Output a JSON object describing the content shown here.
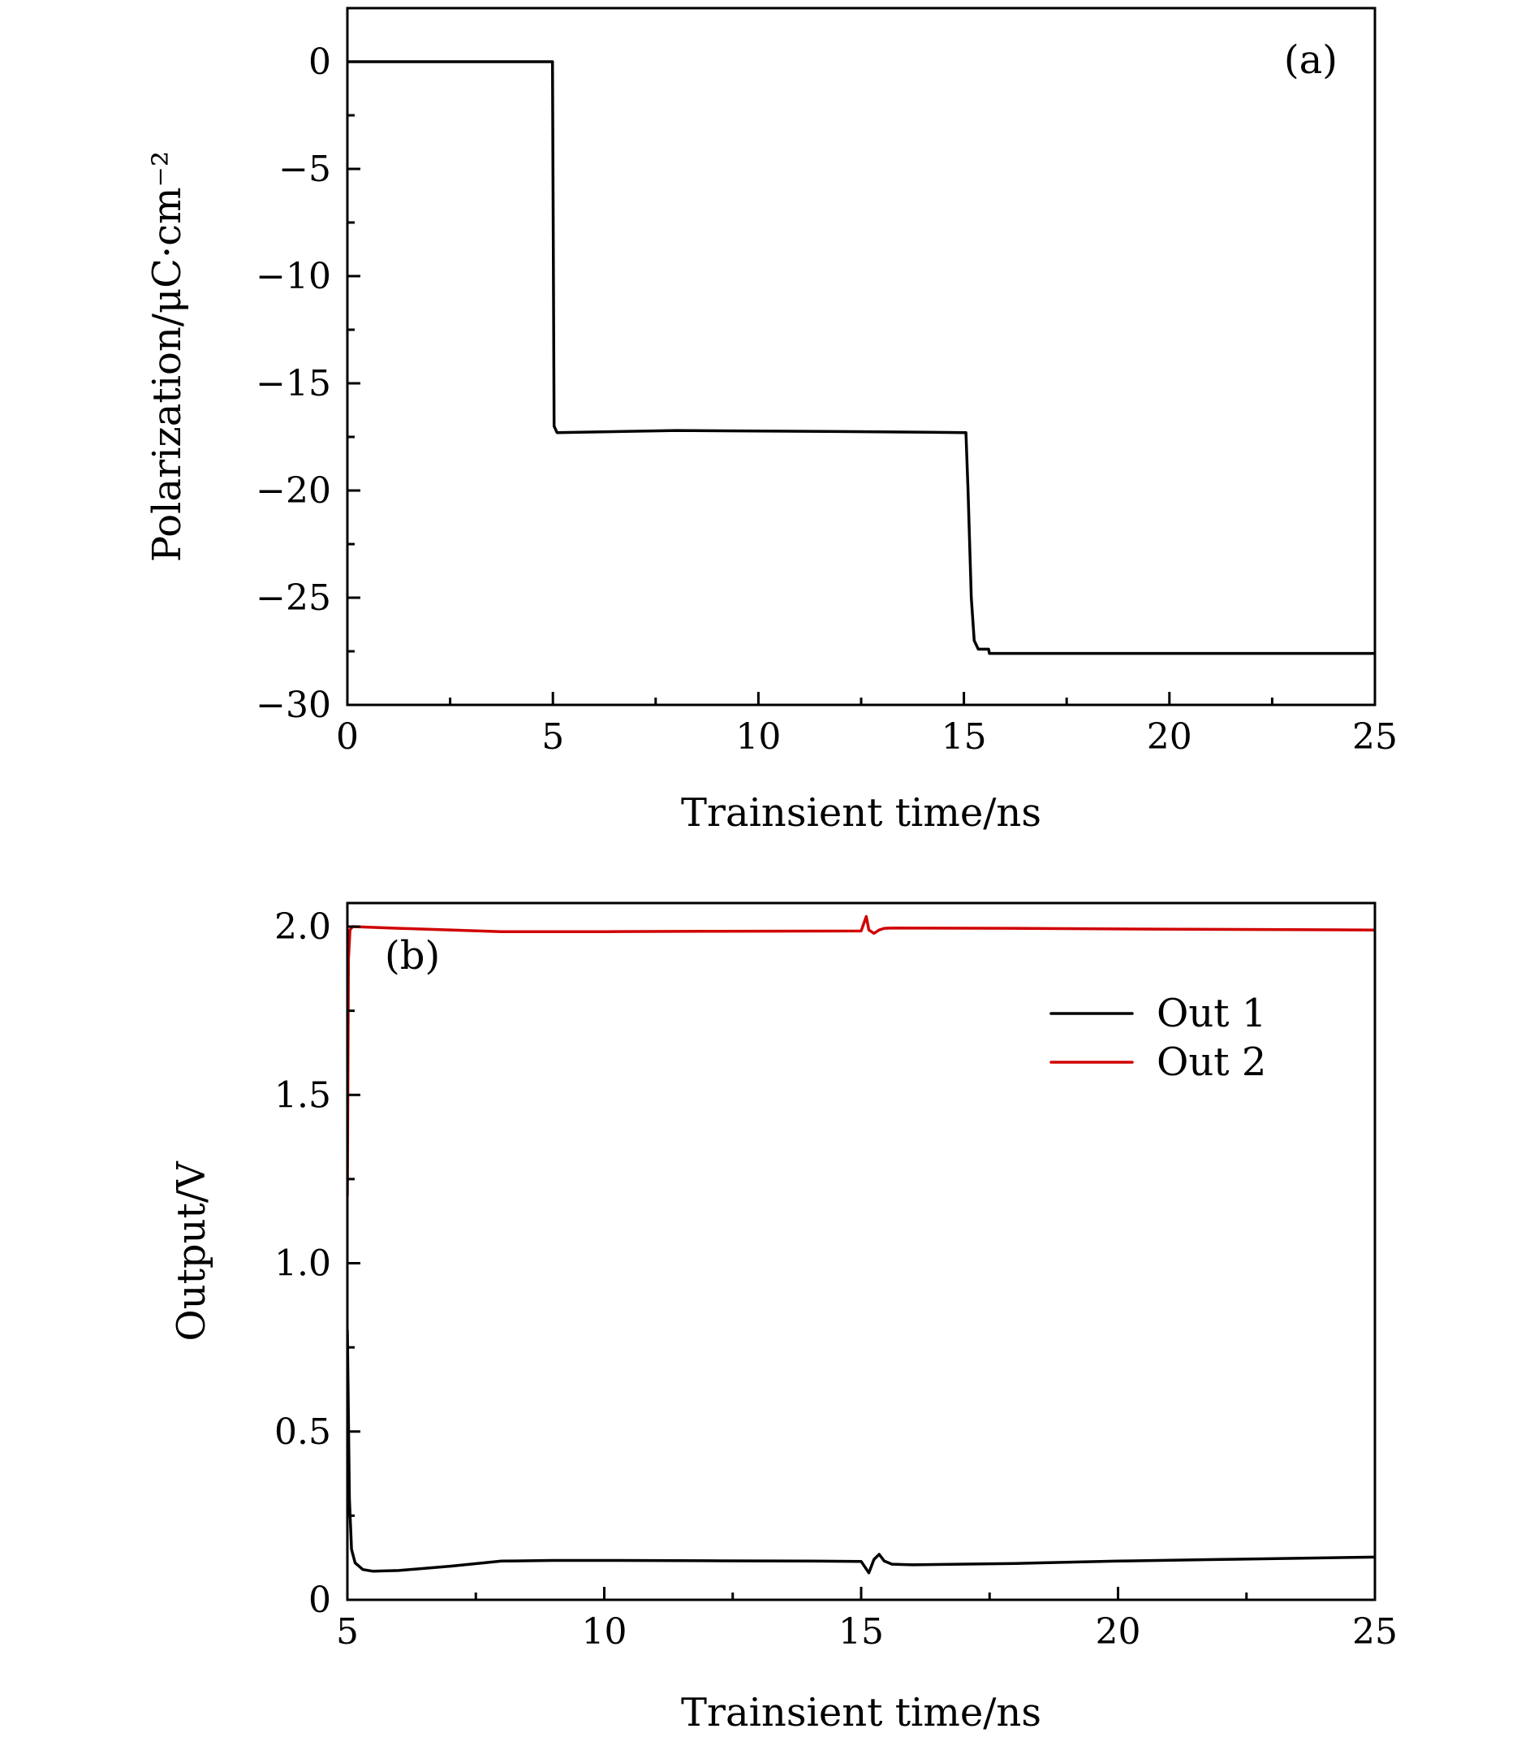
{
  "chart_data": [
    {
      "type": "line",
      "panel_label": "(a)",
      "title": "",
      "xlabel": "Trainsient time/ns",
      "ylabel": "Polarization/μC·cm⁻²",
      "xlim": [
        0,
        25
      ],
      "ylim": [
        -30,
        2.5
      ],
      "xticks": [
        0,
        5,
        10,
        15,
        20,
        25
      ],
      "xtick_labels": [
        "0",
        "5",
        "10",
        "15",
        "20",
        "25"
      ],
      "yticks": [
        0,
        -5,
        -10,
        -15,
        -20,
        -25,
        -30
      ],
      "ytick_labels": [
        "0",
        "−5",
        "−10",
        "−15",
        "−20",
        "−25",
        "−30"
      ],
      "grid": false,
      "legend": null,
      "series": [
        {
          "color": "#000000",
          "x": [
            0,
            4.99,
            5.03,
            5.1,
            8,
            12,
            15.05,
            15.1,
            15.18,
            15.25,
            15.35,
            15.6,
            15.62,
            25
          ],
          "y": [
            0,
            0,
            -17.0,
            -17.3,
            -17.2,
            -17.25,
            -17.3,
            -20,
            -25,
            -27,
            -27.4,
            -27.4,
            -27.6,
            -27.6
          ]
        }
      ]
    },
    {
      "type": "line",
      "panel_label": "(b)",
      "title": "",
      "xlabel": "Trainsient time/ns",
      "ylabel": "Output/V",
      "xlim": [
        5,
        25
      ],
      "ylim": [
        0,
        2.07
      ],
      "xticks": [
        5,
        10,
        15,
        20,
        25
      ],
      "xtick_labels": [
        "5",
        "10",
        "15",
        "20",
        "25"
      ],
      "yticks": [
        0,
        0.5,
        1.0,
        1.5,
        2.0
      ],
      "ytick_labels": [
        "0",
        "0.5",
        "1.0",
        "1.5",
        "2.0"
      ],
      "grid": false,
      "legend": {
        "position": "top-right",
        "entries": [
          "Out 1",
          "Out 2"
        ]
      },
      "series": [
        {
          "name": "Out 1",
          "color": "#000000",
          "x": [
            5.0,
            5.04,
            5.08,
            5.15,
            5.3,
            5.5,
            6,
            7,
            8,
            9,
            10,
            12,
            14,
            15.0,
            15.15,
            15.25,
            15.35,
            15.45,
            15.6,
            16,
            18,
            20,
            22,
            25
          ],
          "y": [
            0.8,
            0.3,
            0.15,
            0.11,
            0.09,
            0.085,
            0.087,
            0.1,
            0.115,
            0.117,
            0.117,
            0.116,
            0.115,
            0.114,
            0.08,
            0.12,
            0.135,
            0.115,
            0.106,
            0.104,
            0.108,
            0.115,
            0.12,
            0.127
          ]
        },
        {
          "name": "Out 2",
          "color": "#d00000",
          "x": [
            5.0,
            5.02,
            5.05,
            5.1,
            6,
            8,
            10,
            12,
            15.0,
            15.1,
            15.15,
            15.25,
            15.35,
            15.45,
            15.6,
            18,
            20,
            25
          ],
          "y": [
            1.2,
            1.9,
            1.99,
            2.0,
            1.995,
            1.985,
            1.985,
            1.986,
            1.987,
            2.03,
            1.99,
            1.98,
            1.99,
            1.995,
            1.996,
            1.995,
            1.993,
            1.99
          ]
        }
      ]
    }
  ]
}
